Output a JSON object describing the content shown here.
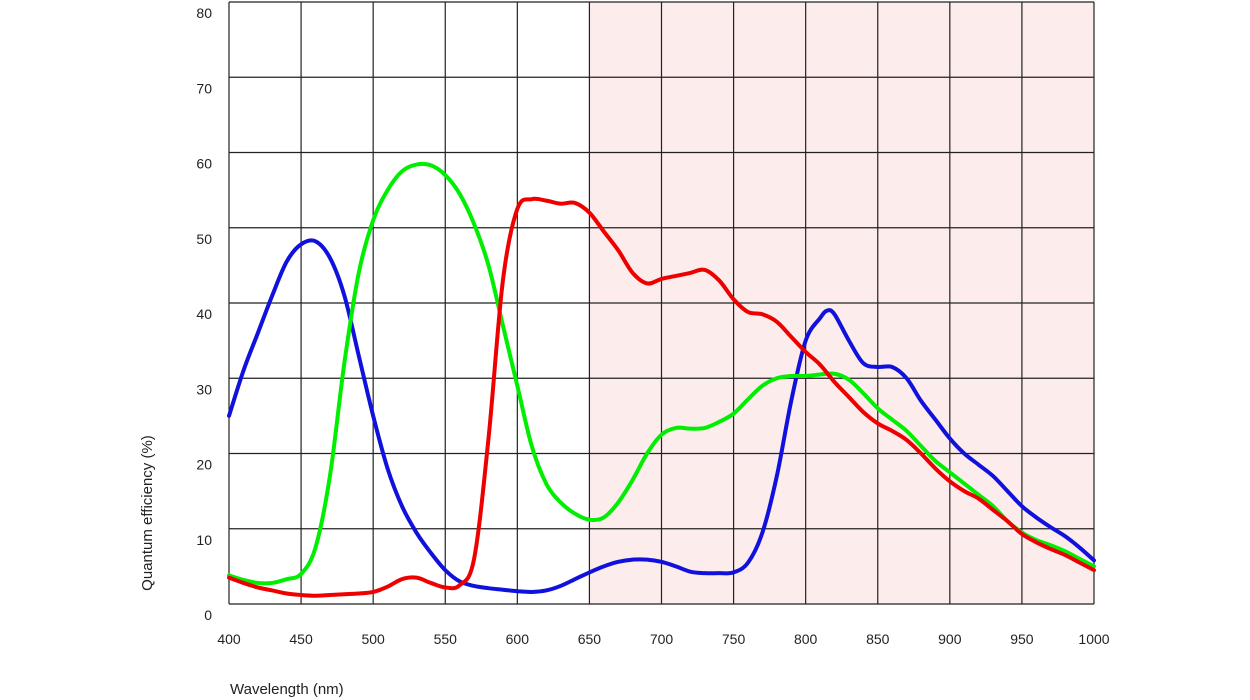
{
  "chart_data": {
    "type": "line",
    "xlabel": "Wavelength (nm)",
    "ylabel": "Quantum efficiency (%)",
    "xlim": [
      400,
      1000
    ],
    "ylim": [
      0,
      80
    ],
    "x_ticks": [
      400,
      450,
      500,
      550,
      600,
      650,
      700,
      750,
      800,
      850,
      900,
      950,
      1000
    ],
    "y_ticks": [
      0,
      10,
      20,
      30,
      40,
      50,
      60,
      70,
      80
    ],
    "grid": true,
    "shaded_region": {
      "x_start": 650,
      "x_end": 1000,
      "color": "#fcecec"
    },
    "series": [
      {
        "color": "#1111dd",
        "points": [
          [
            400,
            25
          ],
          [
            410,
            31
          ],
          [
            420,
            36
          ],
          [
            430,
            41
          ],
          [
            440,
            45.5
          ],
          [
            450,
            47.8
          ],
          [
            460,
            48.2
          ],
          [
            470,
            46
          ],
          [
            480,
            41
          ],
          [
            490,
            33
          ],
          [
            500,
            25
          ],
          [
            510,
            18
          ],
          [
            520,
            13
          ],
          [
            530,
            9.5
          ],
          [
            540,
            6.8
          ],
          [
            550,
            4.5
          ],
          [
            560,
            3
          ],
          [
            570,
            2.4
          ],
          [
            580,
            2.1
          ],
          [
            590,
            1.9
          ],
          [
            600,
            1.7
          ],
          [
            610,
            1.6
          ],
          [
            620,
            1.8
          ],
          [
            630,
            2.4
          ],
          [
            640,
            3.3
          ],
          [
            650,
            4.2
          ],
          [
            660,
            5.0
          ],
          [
            670,
            5.6
          ],
          [
            680,
            5.9
          ],
          [
            690,
            5.9
          ],
          [
            700,
            5.6
          ],
          [
            710,
            5
          ],
          [
            720,
            4.3
          ],
          [
            730,
            4.1
          ],
          [
            740,
            4.1
          ],
          [
            750,
            4.2
          ],
          [
            760,
            5.5
          ],
          [
            770,
            9.5
          ],
          [
            780,
            17
          ],
          [
            790,
            27
          ],
          [
            800,
            35
          ],
          [
            810,
            38
          ],
          [
            815,
            39
          ],
          [
            820,
            38.5
          ],
          [
            830,
            35
          ],
          [
            840,
            32
          ],
          [
            850,
            31.5
          ],
          [
            860,
            31.5
          ],
          [
            870,
            30
          ],
          [
            880,
            27
          ],
          [
            890,
            24.5
          ],
          [
            900,
            22
          ],
          [
            910,
            20
          ],
          [
            920,
            18.5
          ],
          [
            930,
            17
          ],
          [
            940,
            15
          ],
          [
            950,
            13
          ],
          [
            960,
            11.5
          ],
          [
            970,
            10.2
          ],
          [
            980,
            9
          ],
          [
            990,
            7.5
          ],
          [
            1000,
            5.8
          ]
        ]
      },
      {
        "color": "#00ee00",
        "points": [
          [
            400,
            3.8
          ],
          [
            410,
            3.2
          ],
          [
            420,
            2.8
          ],
          [
            430,
            2.8
          ],
          [
            440,
            3.3
          ],
          [
            450,
            4
          ],
          [
            460,
            7.5
          ],
          [
            470,
            17
          ],
          [
            480,
            32
          ],
          [
            490,
            44
          ],
          [
            500,
            51
          ],
          [
            510,
            55
          ],
          [
            520,
            57.5
          ],
          [
            530,
            58.4
          ],
          [
            540,
            58.3
          ],
          [
            550,
            57
          ],
          [
            560,
            54.5
          ],
          [
            570,
            50.5
          ],
          [
            580,
            45
          ],
          [
            590,
            37
          ],
          [
            600,
            29
          ],
          [
            610,
            21
          ],
          [
            620,
            16
          ],
          [
            630,
            13.5
          ],
          [
            640,
            12
          ],
          [
            650,
            11.2
          ],
          [
            660,
            11.5
          ],
          [
            670,
            13.5
          ],
          [
            680,
            16.5
          ],
          [
            690,
            20
          ],
          [
            700,
            22.5
          ],
          [
            710,
            23.4
          ],
          [
            720,
            23.3
          ],
          [
            730,
            23.4
          ],
          [
            740,
            24.2
          ],
          [
            750,
            25.3
          ],
          [
            760,
            27.2
          ],
          [
            770,
            29
          ],
          [
            780,
            30
          ],
          [
            790,
            30.3
          ],
          [
            800,
            30.3
          ],
          [
            810,
            30.5
          ],
          [
            820,
            30.6
          ],
          [
            830,
            29.8
          ],
          [
            840,
            28
          ],
          [
            850,
            26
          ],
          [
            860,
            24.5
          ],
          [
            870,
            23
          ],
          [
            880,
            21
          ],
          [
            890,
            19
          ],
          [
            900,
            17.5
          ],
          [
            910,
            16
          ],
          [
            920,
            14.5
          ],
          [
            930,
            13
          ],
          [
            940,
            11
          ],
          [
            950,
            9.5
          ],
          [
            960,
            8.5
          ],
          [
            970,
            7.8
          ],
          [
            980,
            7
          ],
          [
            990,
            6
          ],
          [
            1000,
            5
          ]
        ]
      },
      {
        "color": "#ee0000",
        "points": [
          [
            400,
            3.5
          ],
          [
            410,
            2.8
          ],
          [
            420,
            2.2
          ],
          [
            430,
            1.8
          ],
          [
            440,
            1.4
          ],
          [
            450,
            1.2
          ],
          [
            460,
            1.1
          ],
          [
            470,
            1.2
          ],
          [
            480,
            1.3
          ],
          [
            490,
            1.4
          ],
          [
            500,
            1.6
          ],
          [
            510,
            2.3
          ],
          [
            520,
            3.3
          ],
          [
            530,
            3.5
          ],
          [
            540,
            2.8
          ],
          [
            550,
            2.2
          ],
          [
            560,
            2.5
          ],
          [
            570,
            6
          ],
          [
            580,
            22
          ],
          [
            590,
            43
          ],
          [
            600,
            52.5
          ],
          [
            610,
            53.8
          ],
          [
            620,
            53.6
          ],
          [
            630,
            53.2
          ],
          [
            640,
            53.3
          ],
          [
            650,
            52
          ],
          [
            660,
            49.5
          ],
          [
            670,
            47
          ],
          [
            680,
            44
          ],
          [
            690,
            42.6
          ],
          [
            700,
            43.2
          ],
          [
            710,
            43.6
          ],
          [
            720,
            44
          ],
          [
            730,
            44.4
          ],
          [
            740,
            43
          ],
          [
            750,
            40.5
          ],
          [
            760,
            38.8
          ],
          [
            770,
            38.5
          ],
          [
            780,
            37.5
          ],
          [
            790,
            35.5
          ],
          [
            800,
            33.5
          ],
          [
            810,
            31.8
          ],
          [
            820,
            29.5
          ],
          [
            830,
            27.5
          ],
          [
            840,
            25.5
          ],
          [
            850,
            24
          ],
          [
            860,
            23
          ],
          [
            870,
            21.8
          ],
          [
            880,
            20
          ],
          [
            890,
            18
          ],
          [
            900,
            16.3
          ],
          [
            910,
            15
          ],
          [
            920,
            14
          ],
          [
            930,
            12.5
          ],
          [
            940,
            11
          ],
          [
            950,
            9.3
          ],
          [
            960,
            8.2
          ],
          [
            970,
            7.3
          ],
          [
            980,
            6.5
          ],
          [
            990,
            5.5
          ],
          [
            1000,
            4.5
          ]
        ]
      }
    ]
  }
}
